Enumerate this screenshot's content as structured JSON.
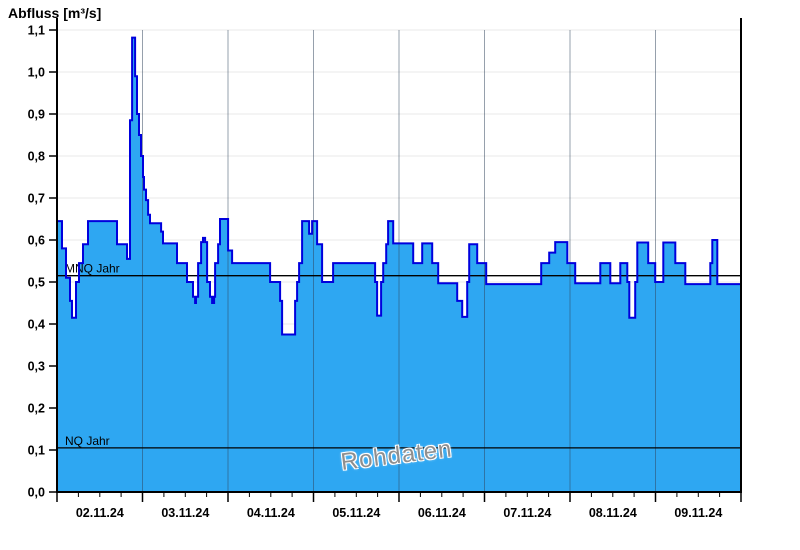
{
  "chart_data": {
    "type": "area",
    "title": "Abfluss [m³/s]",
    "series_name": "Abfluss Rohdaten",
    "watermark": "Rohdaten",
    "step_interpolation": true,
    "x_axis": {
      "unit": "days",
      "range": [
        0,
        8
      ],
      "day_labels": [
        "02.11.24",
        "03.11.24",
        "04.11.24",
        "05.11.24",
        "06.11.24",
        "07.11.24",
        "08.11.24",
        "09.11.24"
      ],
      "minor_tick_step_days": 0.25
    },
    "y_axis": {
      "min": 0,
      "max": 1.1,
      "tick_step": 0.1,
      "tick_labels": [
        "0,0",
        "0,1",
        "0,2",
        "0,3",
        "0,4",
        "0,5",
        "0,6",
        "0,7",
        "0,8",
        "0,9",
        "1,0",
        "1,1"
      ]
    },
    "reference_lines": [
      {
        "label": "MNQ Jahr",
        "value": 0.515
      },
      {
        "label": "NQ Jahr",
        "value": 0.105
      }
    ],
    "colors": {
      "fill": "#2ea7f2",
      "line": "#0000dd",
      "grid_h": "#e9e9e9",
      "grid_v": "rgba(45,65,90,0.5)",
      "reference": "#000000",
      "axis": "#000000"
    },
    "points": [
      [
        0,
        0.645
      ],
      [
        0.059,
        0.58
      ],
      [
        0.105,
        0.51
      ],
      [
        0.152,
        0.455
      ],
      [
        0.176,
        0.415
      ],
      [
        0.222,
        0.5
      ],
      [
        0.257,
        0.545
      ],
      [
        0.304,
        0.59
      ],
      [
        0.363,
        0.645
      ],
      [
        0.702,
        0.59
      ],
      [
        0.819,
        0.555
      ],
      [
        0.854,
        0.885
      ],
      [
        0.878,
        1.082
      ],
      [
        0.913,
        0.99
      ],
      [
        0.936,
        0.9
      ],
      [
        0.959,
        0.85
      ],
      [
        0.983,
        0.8
      ],
      [
        1.006,
        0.75
      ],
      [
        1.018,
        0.72
      ],
      [
        1.041,
        0.695
      ],
      [
        1.065,
        0.66
      ],
      [
        1.088,
        0.64
      ],
      [
        1.217,
        0.62
      ],
      [
        1.24,
        0.592
      ],
      [
        1.404,
        0.545
      ],
      [
        1.521,
        0.5
      ],
      [
        1.591,
        0.465
      ],
      [
        1.615,
        0.45
      ],
      [
        1.626,
        0.465
      ],
      [
        1.65,
        0.545
      ],
      [
        1.685,
        0.595
      ],
      [
        1.708,
        0.605
      ],
      [
        1.732,
        0.595
      ],
      [
        1.755,
        0.5
      ],
      [
        1.79,
        0.465
      ],
      [
        1.814,
        0.45
      ],
      [
        1.837,
        0.465
      ],
      [
        1.849,
        0.545
      ],
      [
        1.884,
        0.59
      ],
      [
        1.907,
        0.65
      ],
      [
        2.001,
        0.575
      ],
      [
        2.048,
        0.545
      ],
      [
        2.492,
        0.5
      ],
      [
        2.609,
        0.455
      ],
      [
        2.633,
        0.375
      ],
      [
        2.785,
        0.455
      ],
      [
        2.808,
        0.5
      ],
      [
        2.832,
        0.545
      ],
      [
        2.867,
        0.645
      ],
      [
        2.949,
        0.615
      ],
      [
        2.984,
        0.645
      ],
      [
        3.042,
        0.59
      ],
      [
        3.101,
        0.5
      ],
      [
        3.229,
        0.545
      ],
      [
        3.721,
        0.5
      ],
      [
        3.744,
        0.42
      ],
      [
        3.791,
        0.5
      ],
      [
        3.815,
        0.545
      ],
      [
        3.85,
        0.59
      ],
      [
        3.873,
        0.645
      ],
      [
        3.932,
        0.592
      ],
      [
        4.166,
        0.545
      ],
      [
        4.271,
        0.592
      ],
      [
        4.388,
        0.545
      ],
      [
        4.458,
        0.497
      ],
      [
        4.681,
        0.455
      ],
      [
        4.739,
        0.417
      ],
      [
        4.798,
        0.5
      ],
      [
        4.821,
        0.59
      ],
      [
        4.915,
        0.545
      ],
      [
        5.02,
        0.495
      ],
      [
        5.663,
        0.545
      ],
      [
        5.757,
        0.57
      ],
      [
        5.827,
        0.595
      ],
      [
        5.968,
        0.545
      ],
      [
        6.061,
        0.497
      ],
      [
        6.354,
        0.545
      ],
      [
        6.471,
        0.497
      ],
      [
        6.588,
        0.545
      ],
      [
        6.67,
        0.5
      ],
      [
        6.693,
        0.415
      ],
      [
        6.763,
        0.5
      ],
      [
        6.787,
        0.594
      ],
      [
        6.915,
        0.545
      ],
      [
        6.997,
        0.5
      ],
      [
        7.091,
        0.594
      ],
      [
        7.231,
        0.545
      ],
      [
        7.348,
        0.495
      ],
      [
        7.641,
        0.545
      ],
      [
        7.664,
        0.6
      ],
      [
        7.723,
        0.495
      ]
    ]
  }
}
